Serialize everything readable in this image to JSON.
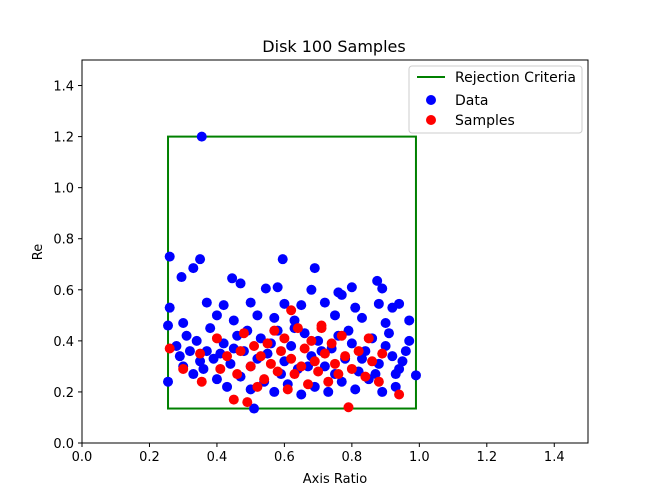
{
  "chart_data": {
    "type": "scatter",
    "title": "Disk 100 Samples",
    "xlabel": "Axis Ratio",
    "ylabel": "Re",
    "xlim": [
      0.0,
      1.5
    ],
    "ylim": [
      0.0,
      1.5
    ],
    "xticks": [
      "0.0",
      "0.2",
      "0.4",
      "0.6",
      "0.8",
      "1.0",
      "1.2",
      "1.4"
    ],
    "yticks": [
      "0.0",
      "0.2",
      "0.4",
      "0.6",
      "0.8",
      "1.0",
      "1.2",
      "1.4"
    ],
    "grid": false,
    "legend_position": "top-right",
    "rejection_criteria": {
      "name": "Rejection Criteria",
      "color": "#008000",
      "x_min": 0.255,
      "x_max": 0.99,
      "y_min": 0.135,
      "y_max": 1.2
    },
    "series": [
      {
        "name": "Data",
        "color": "#0000ff",
        "points": [
          [
            0.355,
            1.2
          ],
          [
            0.26,
            0.73
          ],
          [
            0.35,
            0.72
          ],
          [
            0.595,
            0.72
          ],
          [
            0.69,
            0.685
          ],
          [
            0.295,
            0.65
          ],
          [
            0.33,
            0.685
          ],
          [
            0.445,
            0.645
          ],
          [
            0.875,
            0.635
          ],
          [
            0.47,
            0.625
          ],
          [
            0.8,
            0.61
          ],
          [
            0.89,
            0.605
          ],
          [
            0.545,
            0.605
          ],
          [
            0.58,
            0.61
          ],
          [
            0.68,
            0.6
          ],
          [
            0.76,
            0.59
          ],
          [
            0.77,
            0.58
          ],
          [
            0.6,
            0.545
          ],
          [
            0.94,
            0.545
          ],
          [
            0.88,
            0.545
          ],
          [
            0.26,
            0.53
          ],
          [
            0.37,
            0.55
          ],
          [
            0.42,
            0.54
          ],
          [
            0.5,
            0.55
          ],
          [
            0.65,
            0.54
          ],
          [
            0.72,
            0.55
          ],
          [
            0.81,
            0.53
          ],
          [
            0.92,
            0.53
          ],
          [
            0.97,
            0.48
          ],
          [
            0.255,
            0.46
          ],
          [
            0.3,
            0.47
          ],
          [
            0.4,
            0.5
          ],
          [
            0.45,
            0.48
          ],
          [
            0.52,
            0.5
          ],
          [
            0.57,
            0.49
          ],
          [
            0.63,
            0.48
          ],
          [
            0.75,
            0.5
          ],
          [
            0.83,
            0.49
          ],
          [
            0.9,
            0.47
          ],
          [
            0.255,
            0.24
          ],
          [
            0.51,
            0.135
          ],
          [
            0.99,
            0.265
          ],
          [
            0.93,
            0.27
          ],
          [
            0.28,
            0.38
          ],
          [
            0.31,
            0.42
          ],
          [
            0.34,
            0.4
          ],
          [
            0.37,
            0.36
          ],
          [
            0.39,
            0.33
          ],
          [
            0.42,
            0.39
          ],
          [
            0.44,
            0.31
          ],
          [
            0.46,
            0.42
          ],
          [
            0.48,
            0.36
          ],
          [
            0.5,
            0.3
          ],
          [
            0.53,
            0.41
          ],
          [
            0.55,
            0.35
          ],
          [
            0.58,
            0.44
          ],
          [
            0.6,
            0.32
          ],
          [
            0.62,
            0.38
          ],
          [
            0.64,
            0.29
          ],
          [
            0.66,
            0.43
          ],
          [
            0.68,
            0.34
          ],
          [
            0.7,
            0.4
          ],
          [
            0.72,
            0.3
          ],
          [
            0.74,
            0.37
          ],
          [
            0.76,
            0.42
          ],
          [
            0.78,
            0.33
          ],
          [
            0.8,
            0.39
          ],
          [
            0.82,
            0.28
          ],
          [
            0.84,
            0.36
          ],
          [
            0.86,
            0.41
          ],
          [
            0.88,
            0.31
          ],
          [
            0.9,
            0.38
          ],
          [
            0.92,
            0.34
          ],
          [
            0.94,
            0.29
          ],
          [
            0.96,
            0.36
          ],
          [
            0.3,
            0.3
          ],
          [
            0.33,
            0.27
          ],
          [
            0.36,
            0.29
          ],
          [
            0.4,
            0.25
          ],
          [
            0.43,
            0.22
          ],
          [
            0.47,
            0.26
          ],
          [
            0.5,
            0.21
          ],
          [
            0.54,
            0.24
          ],
          [
            0.57,
            0.2
          ],
          [
            0.61,
            0.23
          ],
          [
            0.65,
            0.19
          ],
          [
            0.69,
            0.22
          ],
          [
            0.73,
            0.2
          ],
          [
            0.77,
            0.24
          ],
          [
            0.81,
            0.21
          ],
          [
            0.85,
            0.25
          ],
          [
            0.89,
            0.2
          ],
          [
            0.93,
            0.22
          ],
          [
            0.29,
            0.34
          ],
          [
            0.32,
            0.36
          ],
          [
            0.35,
            0.32
          ],
          [
            0.38,
            0.45
          ],
          [
            0.41,
            0.35
          ],
          [
            0.45,
            0.37
          ],
          [
            0.49,
            0.44
          ],
          [
            0.52,
            0.33
          ],
          [
            0.56,
            0.39
          ],
          [
            0.59,
            0.27
          ],
          [
            0.63,
            0.45
          ],
          [
            0.67,
            0.3
          ],
          [
            0.71,
            0.36
          ],
          [
            0.75,
            0.27
          ],
          [
            0.79,
            0.44
          ],
          [
            0.83,
            0.33
          ],
          [
            0.87,
            0.27
          ],
          [
            0.91,
            0.43
          ],
          [
            0.95,
            0.32
          ],
          [
            0.97,
            0.4
          ]
        ]
      },
      {
        "name": "Samples",
        "color": "#ff0000",
        "points": [
          [
            0.26,
            0.37
          ],
          [
            0.3,
            0.29
          ],
          [
            0.35,
            0.35
          ],
          [
            0.355,
            0.24
          ],
          [
            0.4,
            0.41
          ],
          [
            0.41,
            0.29
          ],
          [
            0.43,
            0.34
          ],
          [
            0.45,
            0.17
          ],
          [
            0.46,
            0.27
          ],
          [
            0.47,
            0.36
          ],
          [
            0.48,
            0.43
          ],
          [
            0.49,
            0.16
          ],
          [
            0.5,
            0.3
          ],
          [
            0.51,
            0.38
          ],
          [
            0.52,
            0.22
          ],
          [
            0.53,
            0.34
          ],
          [
            0.54,
            0.25
          ],
          [
            0.55,
            0.39
          ],
          [
            0.56,
            0.31
          ],
          [
            0.57,
            0.44
          ],
          [
            0.58,
            0.28
          ],
          [
            0.59,
            0.36
          ],
          [
            0.6,
            0.41
          ],
          [
            0.61,
            0.21
          ],
          [
            0.62,
            0.33
          ],
          [
            0.63,
            0.27
          ],
          [
            0.64,
            0.45
          ],
          [
            0.65,
            0.3
          ],
          [
            0.66,
            0.37
          ],
          [
            0.67,
            0.23
          ],
          [
            0.68,
            0.4
          ],
          [
            0.69,
            0.32
          ],
          [
            0.7,
            0.28
          ],
          [
            0.71,
            0.46
          ],
          [
            0.72,
            0.35
          ],
          [
            0.73,
            0.24
          ],
          [
            0.74,
            0.39
          ],
          [
            0.75,
            0.31
          ],
          [
            0.76,
            0.27
          ],
          [
            0.77,
            0.42
          ],
          [
            0.78,
            0.34
          ],
          [
            0.79,
            0.14
          ],
          [
            0.8,
            0.29
          ],
          [
            0.82,
            0.36
          ],
          [
            0.84,
            0.26
          ],
          [
            0.85,
            0.41
          ],
          [
            0.86,
            0.32
          ],
          [
            0.88,
            0.24
          ],
          [
            0.89,
            0.35
          ],
          [
            0.94,
            0.19
          ],
          [
            0.62,
            0.52
          ],
          [
            0.71,
            0.45
          ]
        ]
      }
    ]
  }
}
